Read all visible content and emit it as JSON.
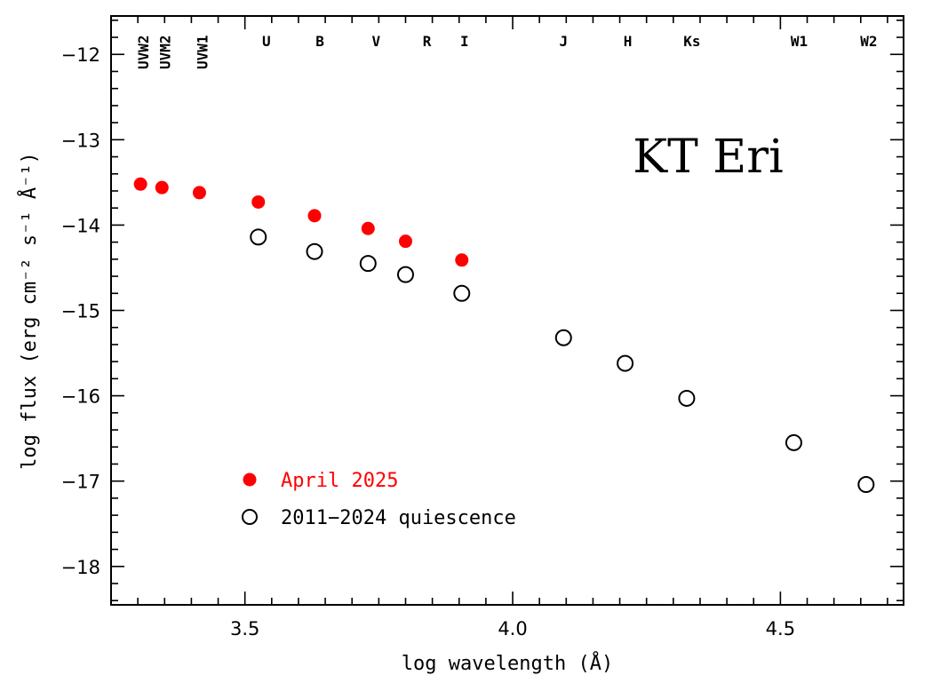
{
  "chart_data": {
    "type": "scatter",
    "object_label": "KT Eri",
    "xlabel": "log wavelength (Å)",
    "ylabel": "log flux (erg cm⁻² s⁻¹ Å⁻¹)",
    "xlim": [
      3.25,
      4.73
    ],
    "ylim": [
      -18.45,
      -11.55
    ],
    "x_ticks": [
      3.5,
      4.0,
      4.5
    ],
    "y_ticks": [
      -12,
      -13,
      -14,
      -15,
      -16,
      -17,
      -18
    ],
    "bands": [
      {
        "label": "UVW2",
        "x": 3.31,
        "vertical": true
      },
      {
        "label": "UVM2",
        "x": 3.35,
        "vertical": true
      },
      {
        "label": "UVW1",
        "x": 3.42,
        "vertical": true
      },
      {
        "label": "U",
        "x": 3.54,
        "vertical": false
      },
      {
        "label": "B",
        "x": 3.64,
        "vertical": false
      },
      {
        "label": "V",
        "x": 3.745,
        "vertical": false
      },
      {
        "label": "R",
        "x": 3.84,
        "vertical": false
      },
      {
        "label": "I",
        "x": 3.91,
        "vertical": false
      },
      {
        "label": "J",
        "x": 4.095,
        "vertical": false
      },
      {
        "label": "H",
        "x": 4.215,
        "vertical": false
      },
      {
        "label": "Ks",
        "x": 4.335,
        "vertical": false
      },
      {
        "label": "W1",
        "x": 4.535,
        "vertical": false
      },
      {
        "label": "W2",
        "x": 4.665,
        "vertical": false
      }
    ],
    "series": [
      {
        "name": "April 2025",
        "color": "#ff0000",
        "marker": "filled-circle",
        "points": [
          {
            "x": 3.305,
            "y": -13.52
          },
          {
            "x": 3.345,
            "y": -13.56
          },
          {
            "x": 3.415,
            "y": -13.62
          },
          {
            "x": 3.525,
            "y": -13.73
          },
          {
            "x": 3.63,
            "y": -13.89
          },
          {
            "x": 3.73,
            "y": -14.04
          },
          {
            "x": 3.8,
            "y": -14.19
          },
          {
            "x": 3.905,
            "y": -14.41
          }
        ]
      },
      {
        "name": "2011−2024 quiescence",
        "color": "#000000",
        "marker": "open-circle",
        "points": [
          {
            "x": 3.525,
            "y": -14.14
          },
          {
            "x": 3.63,
            "y": -14.31
          },
          {
            "x": 3.73,
            "y": -14.45
          },
          {
            "x": 3.8,
            "y": -14.58
          },
          {
            "x": 3.905,
            "y": -14.8
          },
          {
            "x": 4.095,
            "y": -15.32
          },
          {
            "x": 4.21,
            "y": -15.62
          },
          {
            "x": 4.325,
            "y": -16.03
          },
          {
            "x": 4.525,
            "y": -16.55
          },
          {
            "x": 4.66,
            "y": -17.04
          }
        ]
      }
    ],
    "legend_position": "bottom-left",
    "grid": false
  }
}
